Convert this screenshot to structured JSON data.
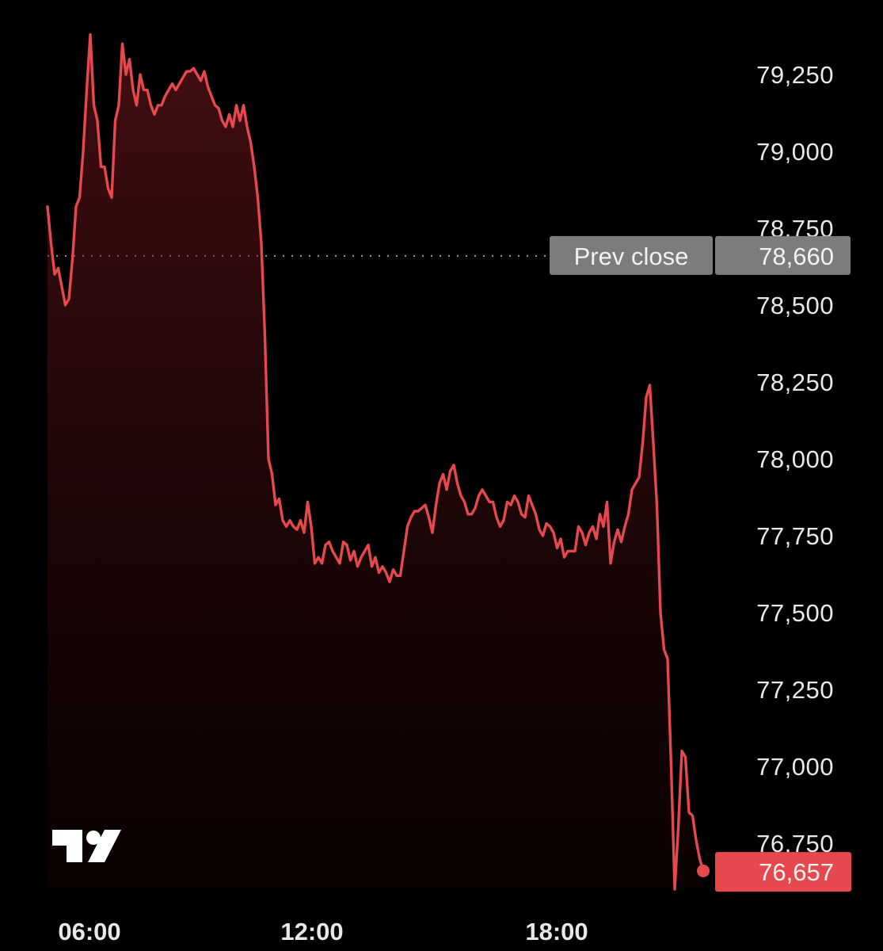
{
  "chart_data": {
    "type": "area",
    "x_ticks": [
      "06:00",
      "12:00",
      "18:00"
    ],
    "y_ticks": [
      "79,250",
      "79,000",
      "78,750",
      "78,500",
      "78,250",
      "78,000",
      "77,750",
      "77,500",
      "77,250",
      "77,000",
      "76,750"
    ],
    "ylim": [
      76580,
      79400
    ],
    "prev_close": {
      "label": "Prev close",
      "value": 78660,
      "text": "78,660"
    },
    "last": {
      "value": 76657,
      "text": "76,657"
    },
    "line_color": "#e5484d",
    "series": [
      {
        "values": [
          78820,
          78700,
          78600,
          78620,
          78560,
          78500,
          78520,
          78650,
          78820,
          78850,
          79000,
          79200,
          79380,
          79150,
          79100,
          78950,
          78950,
          78880,
          78850,
          79100,
          79150,
          79350,
          79250,
          79300,
          79200,
          79150,
          79250,
          79200,
          79200,
          79150,
          79120,
          79150,
          79150,
          79180,
          79200,
          79220,
          79200,
          79220,
          79240,
          79260,
          79260,
          79270,
          79250,
          79230,
          79260,
          79210,
          79180,
          79150,
          79140,
          79100,
          79080,
          79120,
          79080,
          79150,
          79100,
          79150,
          79080,
          79030,
          78950,
          78850,
          78700,
          78400,
          78000,
          77950,
          77850,
          77870,
          77800,
          77780,
          77800,
          77780,
          77770,
          77800,
          77760,
          77860,
          77780,
          77660,
          77680,
          77660,
          77720,
          77730,
          77700,
          77680,
          77660,
          77730,
          77720,
          77670,
          77700,
          77650,
          77680,
          77700,
          77720,
          77650,
          77680,
          77630,
          77650,
          77630,
          77600,
          77640,
          77620,
          77620,
          77700,
          77780,
          77810,
          77830,
          77830,
          77840,
          77850,
          77810,
          77760,
          77850,
          77920,
          77950,
          77900,
          77960,
          77980,
          77920,
          77880,
          77860,
          77820,
          77820,
          77840,
          77880,
          77900,
          77880,
          77860,
          77860,
          77810,
          77780,
          77800,
          77860,
          77850,
          77880,
          77860,
          77820,
          77810,
          77880,
          77850,
          77820,
          77770,
          77750,
          77790,
          77780,
          77760,
          77710,
          77740,
          77680,
          77700,
          77700,
          77700,
          77780,
          77760,
          77720,
          77760,
          77780,
          77740,
          77820,
          77780,
          77860,
          77660,
          77730,
          77770,
          77730,
          77780,
          77820,
          77900,
          77920,
          77940,
          78050,
          78200,
          78240,
          78050,
          77850,
          77500,
          77380,
          77350,
          77000,
          76600,
          76800,
          77050,
          77030,
          76850,
          76840,
          76760,
          76700,
          76660
        ]
      }
    ]
  },
  "logo": {
    "text": "TV"
  }
}
